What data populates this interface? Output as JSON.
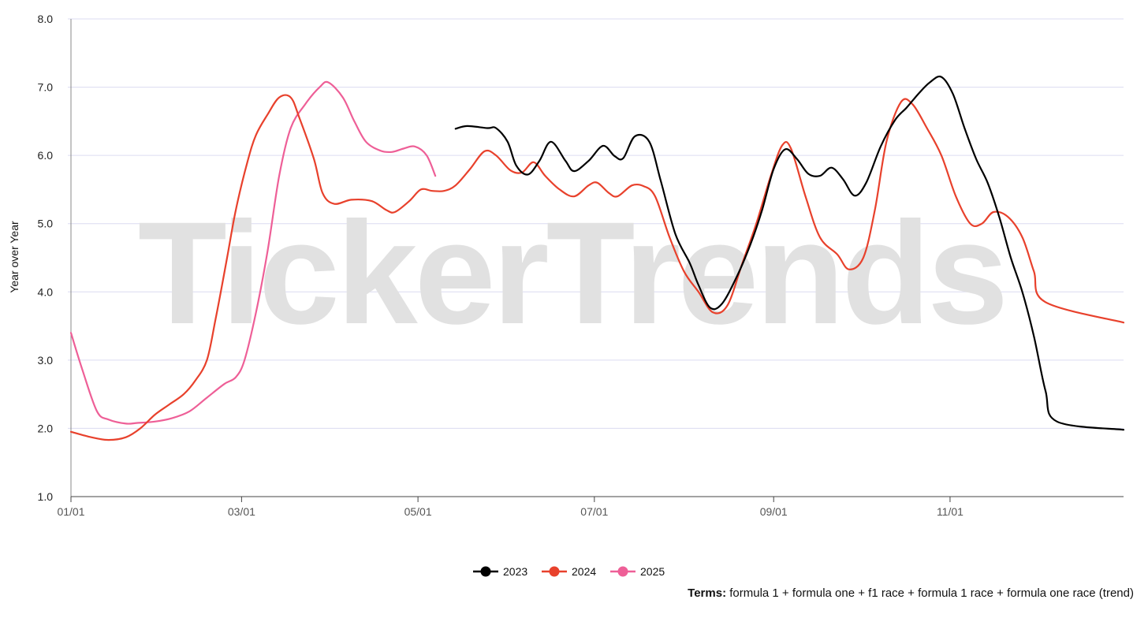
{
  "chart_data": {
    "type": "line",
    "ylabel": "Year over Year",
    "ylim": [
      1.0,
      8.0
    ],
    "y_ticks": [
      "1.0",
      "2.0",
      "3.0",
      "4.0",
      "5.0",
      "6.0",
      "7.0",
      "8.0"
    ],
    "x_ticks": [
      {
        "label": "01/01",
        "day": 1
      },
      {
        "label": "03/01",
        "day": 60
      },
      {
        "label": "05/01",
        "day": 121
      },
      {
        "label": "07/01",
        "day": 182
      },
      {
        "label": "09/01",
        "day": 244
      },
      {
        "label": "11/01",
        "day": 305
      }
    ],
    "x_axis_note": "x values are day-of-year (01/01 = 1)",
    "watermark": "TickerTrends",
    "grid": "horizontal",
    "legend_position": "bottom-center",
    "series": [
      {
        "name": "2023",
        "color": "#000000",
        "points": [
          [
            134,
            6.39
          ],
          [
            138,
            6.43
          ],
          [
            145,
            6.4
          ],
          [
            148,
            6.4
          ],
          [
            152,
            6.2
          ],
          [
            155,
            5.85
          ],
          [
            159,
            5.72
          ],
          [
            163,
            5.92
          ],
          [
            167,
            6.2
          ],
          [
            172,
            5.92
          ],
          [
            175,
            5.77
          ],
          [
            180,
            5.92
          ],
          [
            185,
            6.14
          ],
          [
            189,
            5.99
          ],
          [
            192,
            5.96
          ],
          [
            196,
            6.28
          ],
          [
            201,
            6.2
          ],
          [
            205,
            5.62
          ],
          [
            210,
            4.85
          ],
          [
            215,
            4.42
          ],
          [
            218,
            4.1
          ],
          [
            222,
            3.77
          ],
          [
            226,
            3.82
          ],
          [
            231,
            4.2
          ],
          [
            236,
            4.7
          ],
          [
            240,
            5.2
          ],
          [
            244,
            5.8
          ],
          [
            248,
            6.09
          ],
          [
            252,
            5.95
          ],
          [
            256,
            5.73
          ],
          [
            260,
            5.7
          ],
          [
            264,
            5.82
          ],
          [
            268,
            5.65
          ],
          [
            272,
            5.41
          ],
          [
            276,
            5.6
          ],
          [
            281,
            6.13
          ],
          [
            286,
            6.52
          ],
          [
            290,
            6.7
          ],
          [
            294,
            6.9
          ],
          [
            298,
            7.07
          ],
          [
            302,
            7.15
          ],
          [
            306,
            6.9
          ],
          [
            310,
            6.4
          ],
          [
            314,
            5.95
          ],
          [
            318,
            5.6
          ],
          [
            322,
            5.1
          ],
          [
            326,
            4.5
          ],
          [
            330,
            4.0
          ],
          [
            334,
            3.35
          ],
          [
            338,
            2.55
          ],
          [
            342,
            2.1
          ],
          [
            365,
            1.98
          ]
        ]
      },
      {
        "name": "2024",
        "color": "#e8412c",
        "points": [
          [
            1,
            1.95
          ],
          [
            8,
            1.87
          ],
          [
            14,
            1.83
          ],
          [
            20,
            1.87
          ],
          [
            25,
            2.0
          ],
          [
            30,
            2.2
          ],
          [
            35,
            2.35
          ],
          [
            40,
            2.5
          ],
          [
            44,
            2.7
          ],
          [
            48,
            3.0
          ],
          [
            51,
            3.6
          ],
          [
            55,
            4.5
          ],
          [
            58,
            5.2
          ],
          [
            62,
            5.9
          ],
          [
            65,
            6.3
          ],
          [
            69,
            6.6
          ],
          [
            73,
            6.85
          ],
          [
            77,
            6.85
          ],
          [
            80,
            6.55
          ],
          [
            85,
            5.95
          ],
          [
            88,
            5.45
          ],
          [
            92,
            5.29
          ],
          [
            98,
            5.35
          ],
          [
            105,
            5.33
          ],
          [
            110,
            5.2
          ],
          [
            113,
            5.17
          ],
          [
            118,
            5.33
          ],
          [
            122,
            5.5
          ],
          [
            126,
            5.48
          ],
          [
            130,
            5.48
          ],
          [
            134,
            5.56
          ],
          [
            139,
            5.8
          ],
          [
            144,
            6.06
          ],
          [
            148,
            6.0
          ],
          [
            153,
            5.78
          ],
          [
            157,
            5.75
          ],
          [
            161,
            5.9
          ],
          [
            165,
            5.7
          ],
          [
            170,
            5.5
          ],
          [
            175,
            5.4
          ],
          [
            180,
            5.56
          ],
          [
            183,
            5.6
          ],
          [
            187,
            5.45
          ],
          [
            190,
            5.4
          ],
          [
            195,
            5.56
          ],
          [
            199,
            5.55
          ],
          [
            203,
            5.4
          ],
          [
            208,
            4.8
          ],
          [
            213,
            4.3
          ],
          [
            218,
            4.0
          ],
          [
            223,
            3.7
          ],
          [
            228,
            3.8
          ],
          [
            233,
            4.4
          ],
          [
            238,
            5.0
          ],
          [
            243,
            5.7
          ],
          [
            247,
            6.15
          ],
          [
            250,
            6.1
          ],
          [
            255,
            5.4
          ],
          [
            260,
            4.8
          ],
          [
            266,
            4.55
          ],
          [
            270,
            4.33
          ],
          [
            275,
            4.5
          ],
          [
            279,
            5.2
          ],
          [
            283,
            6.2
          ],
          [
            288,
            6.78
          ],
          [
            292,
            6.75
          ],
          [
            297,
            6.4
          ],
          [
            302,
            6.0
          ],
          [
            307,
            5.4
          ],
          [
            312,
            5.0
          ],
          [
            316,
            5.0
          ],
          [
            320,
            5.17
          ],
          [
            325,
            5.1
          ],
          [
            330,
            4.8
          ],
          [
            334,
            4.3
          ],
          [
            338,
            3.85
          ],
          [
            365,
            3.55
          ]
        ]
      },
      {
        "name": "2025",
        "color": "#ee5f97",
        "points": [
          [
            1,
            3.4
          ],
          [
            5,
            2.85
          ],
          [
            10,
            2.25
          ],
          [
            14,
            2.13
          ],
          [
            20,
            2.07
          ],
          [
            24,
            2.08
          ],
          [
            30,
            2.1
          ],
          [
            36,
            2.15
          ],
          [
            42,
            2.25
          ],
          [
            48,
            2.45
          ],
          [
            54,
            2.65
          ],
          [
            58,
            2.75
          ],
          [
            61,
            3.0
          ],
          [
            65,
            3.7
          ],
          [
            69,
            4.6
          ],
          [
            73,
            5.7
          ],
          [
            77,
            6.4
          ],
          [
            82,
            6.75
          ],
          [
            87,
            7.0
          ],
          [
            90,
            7.07
          ],
          [
            95,
            6.85
          ],
          [
            99,
            6.5
          ],
          [
            103,
            6.2
          ],
          [
            108,
            6.07
          ],
          [
            112,
            6.05
          ],
          [
            116,
            6.1
          ],
          [
            120,
            6.13
          ],
          [
            124,
            6.0
          ],
          [
            127,
            5.7
          ]
        ]
      }
    ]
  },
  "terms": {
    "label": "Terms:",
    "text": "formula 1 + formula one + f1 race + formula 1 race + formula one race (trend)"
  }
}
